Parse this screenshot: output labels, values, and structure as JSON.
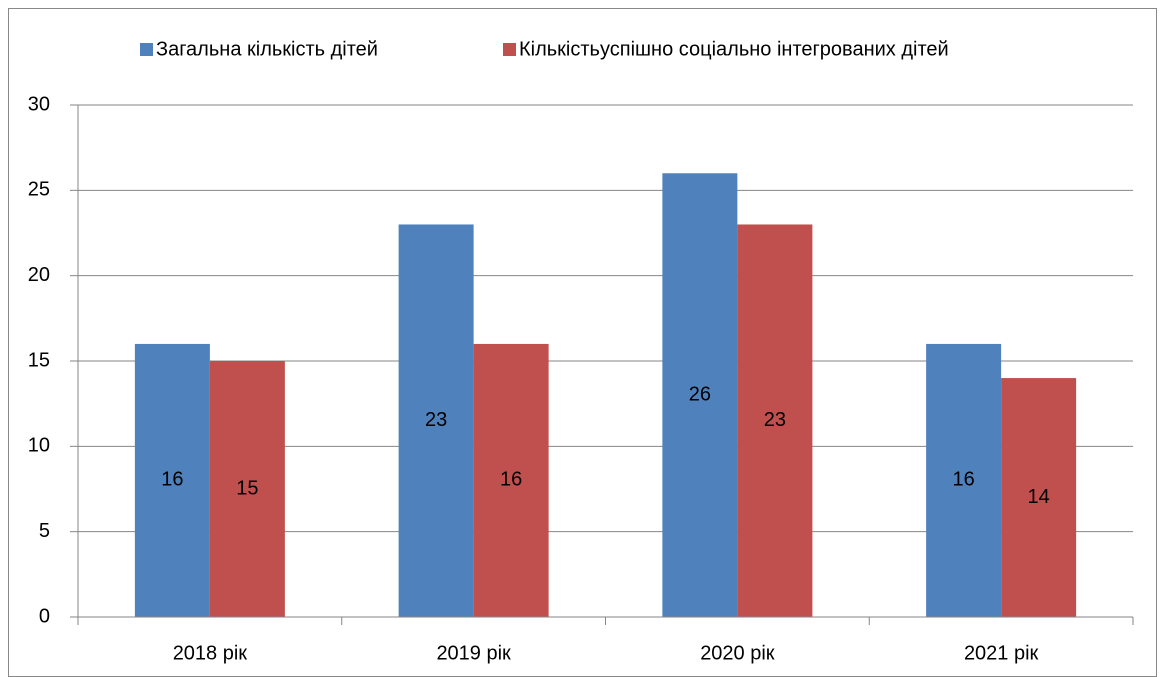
{
  "chart_data": {
    "type": "bar",
    "categories": [
      "2018 рік",
      "2019 рік",
      "2020 рік",
      "2021 рік"
    ],
    "series": [
      {
        "name": "Загальна кількість дітей",
        "color": "#4f81bd",
        "values": [
          16,
          23,
          26,
          16
        ]
      },
      {
        "name": "Кількістьуспішно соціально інтегрованих дітей",
        "color": "#c0504d",
        "values": [
          15,
          16,
          23,
          14
        ]
      }
    ],
    "ylim": [
      0,
      30
    ],
    "yticks": [
      0,
      5,
      10,
      15,
      20,
      25,
      30
    ],
    "grid": true,
    "legend": "top"
  }
}
